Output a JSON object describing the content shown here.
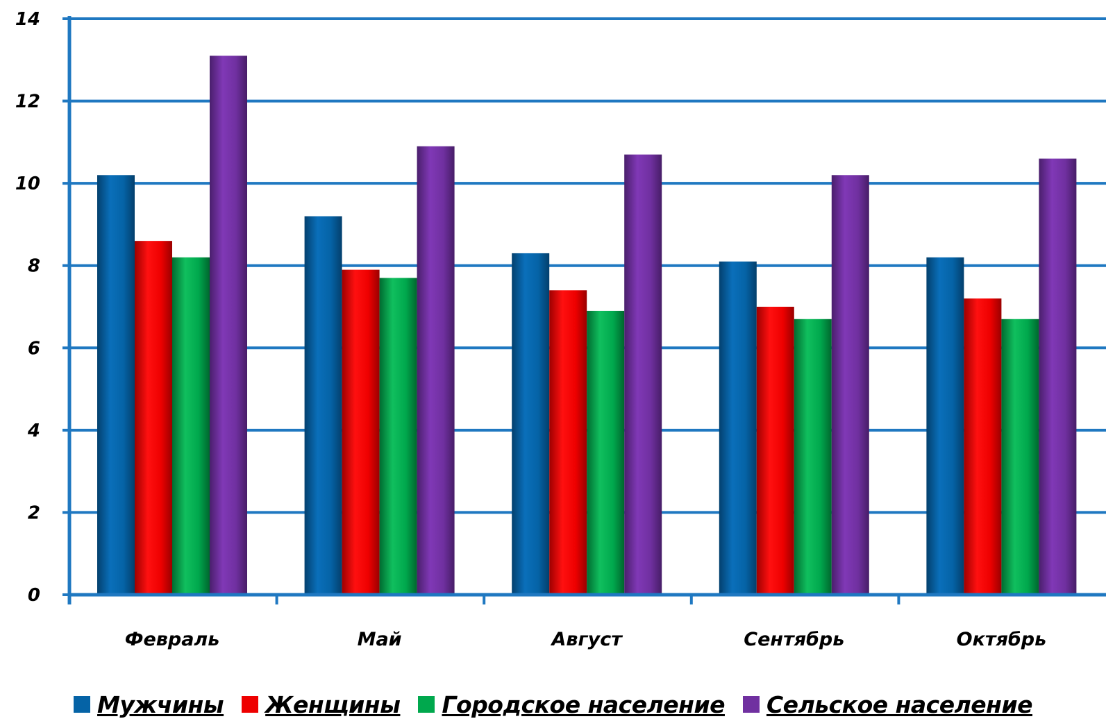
{
  "chart_data": {
    "type": "bar",
    "categories": [
      "Февраль",
      "Май",
      "Август",
      "Сентябрь",
      "Октябрь"
    ],
    "series": [
      {
        "name": "Мужчины",
        "color": "#0563a6",
        "values": [
          10.2,
          9.2,
          8.3,
          8.1,
          8.2
        ]
      },
      {
        "name": "Женщины",
        "color": "#ee0000",
        "values": [
          8.6,
          7.9,
          7.4,
          7.0,
          7.2
        ]
      },
      {
        "name": "Городское население",
        "color": "#00a84d",
        "values": [
          8.2,
          7.7,
          6.9,
          6.7,
          6.7
        ]
      },
      {
        "name": "Сельское население",
        "color": "#7030a0",
        "values": [
          13.1,
          10.9,
          10.7,
          10.2,
          10.6
        ]
      }
    ],
    "yticks": [
      "0",
      "2",
      "4",
      "6",
      "8",
      "10",
      "12",
      "14"
    ],
    "ylim": [
      0,
      14
    ],
    "grid": true,
    "grid_color": "#1f78c1",
    "legend_position": "bottom"
  }
}
